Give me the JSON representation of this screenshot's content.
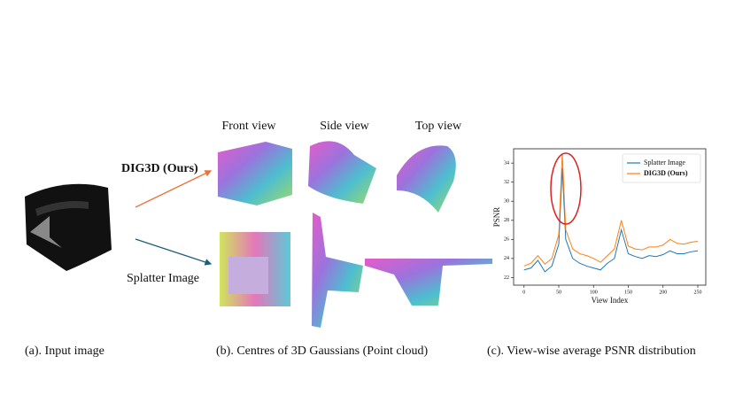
{
  "panel_a": {
    "caption": "(a). Input image"
  },
  "panel_b": {
    "caption": "(b). Centres of 3D Gaussians (Point cloud)",
    "column_headers": [
      "Front view",
      "Side view",
      "Top view"
    ],
    "row_labels": [
      "DIG3D (Ours)",
      "Splatter Image"
    ]
  },
  "panel_c": {
    "caption": "(c). View-wise average PSNR distribution"
  },
  "chart_data": {
    "type": "line",
    "xlabel": "View Index",
    "ylabel": "PSNR",
    "x": [
      0,
      10,
      20,
      30,
      40,
      50,
      55,
      60,
      70,
      80,
      90,
      100,
      110,
      120,
      130,
      140,
      150,
      160,
      170,
      180,
      190,
      200,
      210,
      220,
      230,
      240,
      250
    ],
    "series": [
      {
        "name": "Splatter Image",
        "color": "#1f77b4",
        "values": [
          22.8,
          23.0,
          23.8,
          22.6,
          23.2,
          25.5,
          33.5,
          26.0,
          24.0,
          23.5,
          23.2,
          23.0,
          22.8,
          23.5,
          24.0,
          27.0,
          24.5,
          24.2,
          24.0,
          24.3,
          24.2,
          24.4,
          24.8,
          24.5,
          24.5,
          24.7,
          24.8
        ]
      },
      {
        "name": "DIG3D (Ours)",
        "color": "#ff7f0e",
        "values": [
          23.2,
          23.5,
          24.3,
          23.4,
          24.0,
          26.5,
          35.0,
          27.0,
          25.0,
          24.5,
          24.3,
          24.0,
          23.6,
          24.3,
          25.0,
          28.0,
          25.3,
          25.0,
          24.9,
          25.2,
          25.2,
          25.4,
          26.0,
          25.6,
          25.5,
          25.7,
          25.8
        ]
      }
    ],
    "xlim": [
      -15,
      261.5
    ],
    "ylim": [
      21.2,
      35.5
    ],
    "xticks": [
      0,
      50,
      100,
      150,
      200,
      250
    ],
    "yticks": [
      22,
      24,
      26,
      28,
      30,
      32,
      34
    ],
    "legend": "upper right"
  }
}
